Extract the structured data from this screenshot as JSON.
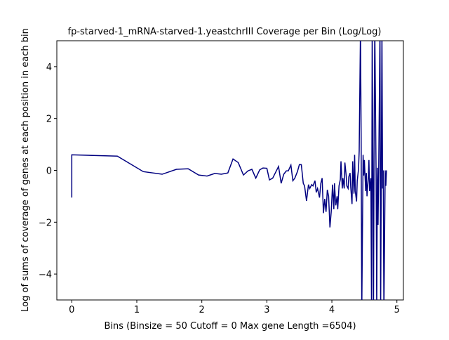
{
  "chart_data": {
    "type": "line",
    "title": "fp-starved-1_mRNA-starved-1.yeastchrIII Coverage per Bin (Log/Log)",
    "xlabel": "Bins  (Binsize = 50 Cutoff = 0 Max gene Length =6504)",
    "ylabel": "Log of sums of coverage of genes at each position in each bin",
    "x": [
      0,
      0,
      0.7,
      1.1,
      1.39,
      1.61,
      1.79,
      1.95,
      2.08,
      2.2,
      2.3,
      2.4,
      2.48,
      2.56,
      2.64,
      2.71,
      2.77,
      2.83,
      2.89,
      2.94,
      3.0,
      3.04,
      3.09,
      3.14,
      3.18,
      3.22,
      3.26,
      3.3,
      3.33,
      3.37,
      3.4,
      3.43,
      3.47,
      3.5,
      3.53,
      3.56,
      3.58,
      3.61,
      3.64,
      3.66,
      3.69,
      3.71,
      3.74,
      3.76,
      3.78,
      3.81,
      3.83,
      3.85,
      3.87,
      3.89,
      3.91,
      3.93,
      3.95,
      3.97,
      3.99,
      4.01,
      4.03,
      4.04,
      4.06,
      4.08,
      4.09,
      4.11,
      4.13,
      4.14,
      4.16,
      4.17,
      4.19,
      4.2,
      4.22,
      4.23,
      4.25,
      4.26,
      4.28,
      4.29,
      4.31,
      4.32,
      4.34,
      4.35,
      4.36,
      4.38,
      4.39,
      4.41,
      4.42,
      4.44,
      4.45,
      4.46,
      4.48,
      4.49,
      4.5,
      4.52,
      4.53,
      4.54,
      4.56,
      4.57,
      4.58,
      4.6,
      4.61,
      4.62,
      4.64,
      4.65,
      4.66,
      4.68,
      4.69,
      4.7,
      4.71,
      4.72,
      4.74,
      4.75,
      4.77,
      4.78,
      4.79,
      4.8,
      4.82,
      4.83,
      4.84
    ],
    "series": [
      {
        "color": "#000080",
        "values": [
          -1.05,
          0.6,
          0.55,
          -0.05,
          -0.15,
          0.04,
          0.06,
          -0.18,
          -0.22,
          -0.12,
          -0.15,
          -0.1,
          0.44,
          0.3,
          -0.18,
          -0.02,
          0.04,
          -0.3,
          0.02,
          0.09,
          0.08,
          -0.37,
          -0.3,
          -0.05,
          0.15,
          -0.5,
          -0.15,
          -0.02,
          -0.02,
          0.2,
          -0.4,
          -0.3,
          -0.05,
          0.22,
          0.22,
          -0.5,
          -0.6,
          -1.18,
          -0.55,
          -0.7,
          -0.55,
          -0.6,
          -0.4,
          -0.85,
          -0.7,
          -1.05,
          -0.5,
          -0.3,
          -1.65,
          -1.1,
          -1.6,
          -0.75,
          -1.0,
          -2.2,
          -1.6,
          -0.55,
          -1.5,
          -0.5,
          -1.35,
          -1.0,
          -1.5,
          -0.6,
          -0.35,
          0.35,
          -0.7,
          -0.3,
          -0.7,
          0.3,
          -0.2,
          -0.6,
          -0.7,
          -0.25,
          -0.1,
          -0.65,
          -1.3,
          0.35,
          -0.9,
          0.6,
          -0.8,
          -1.2,
          -0.4,
          0.05,
          0.75,
          5.5,
          1.3,
          -5.5,
          0.6,
          -0.2,
          0.4,
          -0.8,
          -0.1,
          -1.0,
          -0.3,
          0.4,
          -0.8,
          -0.3,
          -5.5,
          5.5,
          -5.5,
          1.6,
          5.5,
          -0.1,
          -5.5,
          0.1,
          -2.1,
          0.0,
          5.5,
          -5.5,
          5.5,
          -0.7,
          0.0,
          -5.5,
          0.0,
          -0.6,
          0.0
        ]
      }
    ],
    "xlim": [
      -0.23,
      5.1
    ],
    "ylim": [
      -5,
      5
    ],
    "xticks": [
      0,
      1,
      2,
      3,
      4,
      5
    ],
    "yticks": [
      {
        "value": -4,
        "label": "−4"
      },
      {
        "value": -2,
        "label": "−2"
      },
      0,
      2,
      4
    ]
  }
}
